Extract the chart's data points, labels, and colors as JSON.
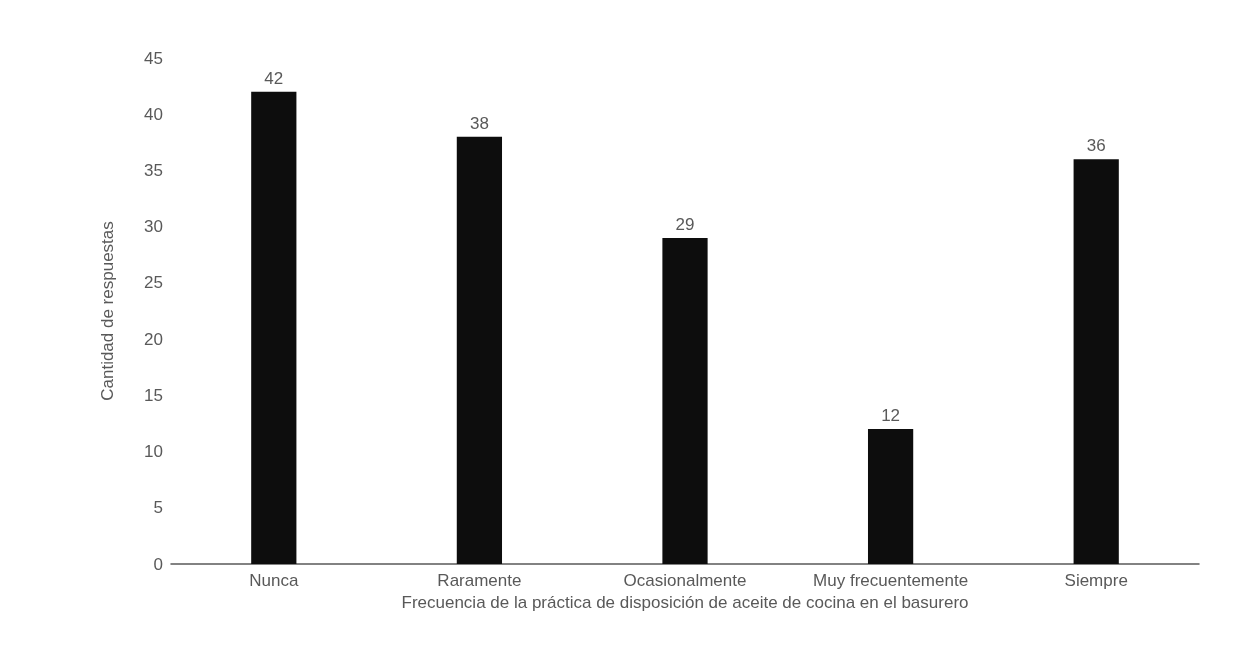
{
  "chart_data": {
    "type": "bar",
    "xlabel": "Frecuencia de la práctica de disposición de aceite de cocina en el basurero",
    "ylabel": "Cantidad de respuestas",
    "categories": [
      "Nunca",
      "Raramente",
      "Ocasionalmente",
      "Muy frecuentemente",
      "Siempre"
    ],
    "values": [
      42,
      38,
      29,
      12,
      36
    ],
    "color": "#0d0d0d",
    "ylim": [
      0,
      45
    ],
    "yticks": [
      0,
      5,
      10,
      15,
      20,
      25,
      30,
      35,
      40,
      45
    ],
    "grid": false,
    "data_labels": true
  }
}
